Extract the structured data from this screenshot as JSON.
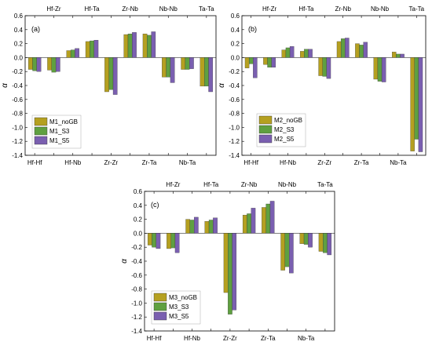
{
  "colors": {
    "s0": "#b5a020",
    "s1": "#5fa040",
    "s2": "#7a5fb0"
  },
  "chart_data": [
    {
      "type": "bar",
      "panel_label": "(a)",
      "ylabel": "α",
      "ylim": [
        -1.4,
        0.6
      ],
      "yticks": [
        "0.6",
        "0.4",
        "0.2",
        "0.0",
        "-0.2",
        "-0.4",
        "-0.6",
        "-0.8",
        "-1.0",
        "-1.2",
        "-1.4"
      ],
      "categories": [
        "Hf-Hf",
        "Hf-Zr",
        "Hf-Nb",
        "Hf-Ta",
        "Zr-Zr",
        "Zr-Nb",
        "Zr-Ta",
        "Nb-Nb",
        "Nb-Ta",
        "Ta-Ta"
      ],
      "legend_position": "bottom-left",
      "series": [
        {
          "name": "M1_noGB",
          "values": [
            -0.17,
            -0.18,
            0.1,
            0.23,
            -0.49,
            0.33,
            0.34,
            -0.28,
            -0.17,
            -0.41
          ]
        },
        {
          "name": "M1_S3",
          "values": [
            -0.19,
            -0.21,
            0.11,
            0.24,
            -0.46,
            0.34,
            0.32,
            -0.28,
            -0.17,
            -0.41
          ]
        },
        {
          "name": "M1_S5",
          "values": [
            -0.2,
            -0.2,
            0.13,
            0.25,
            -0.53,
            0.36,
            0.37,
            -0.36,
            -0.16,
            -0.49
          ]
        }
      ]
    },
    {
      "type": "bar",
      "panel_label": "(b)",
      "ylabel": "α",
      "ylim": [
        -1.4,
        0.6
      ],
      "yticks": [
        "0.6",
        "0.4",
        "0.2",
        "0.0",
        "-0.2",
        "-0.4",
        "-0.6",
        "-0.8",
        "-1.0",
        "-1.2",
        "-1.4"
      ],
      "categories": [
        "Hf-Hf",
        "Hf-Zr",
        "Hf-Nb",
        "Hf-Ta",
        "Zr-Zr",
        "Zr-Nb",
        "Zr-Ta",
        "Nb-Nb",
        "Nb-Ta",
        "Ta-Ta"
      ],
      "legend_position": "bottom-right",
      "series": [
        {
          "name": "M2_noGB",
          "values": [
            -0.15,
            -0.1,
            0.11,
            0.09,
            -0.26,
            0.23,
            0.2,
            -0.31,
            0.08,
            -1.34
          ]
        },
        {
          "name": "M2_S3",
          "values": [
            -0.09,
            -0.14,
            0.14,
            0.12,
            -0.27,
            0.27,
            0.18,
            -0.34,
            0.05,
            -1.17
          ]
        },
        {
          "name": "M2_S5",
          "values": [
            -0.29,
            -0.14,
            0.16,
            0.12,
            -0.3,
            0.28,
            0.22,
            -0.35,
            0.05,
            -1.35
          ]
        }
      ]
    },
    {
      "type": "bar",
      "panel_label": "(c)",
      "ylabel": "α",
      "ylim": [
        -1.4,
        0.6
      ],
      "yticks": [
        "0.6",
        "0.4",
        "0.2",
        "0.0",
        "-0.2",
        "-0.4",
        "-0.6",
        "-0.8",
        "-1.0",
        "-1.2",
        "-1.4"
      ],
      "categories": [
        "Hf-Hf",
        "Hf-Zr",
        "Hf-Nb",
        "Hf-Ta",
        "Zr-Zr",
        "Zr-Nb",
        "Zr-Ta",
        "Nb-Nb",
        "Nb-Ta",
        "Ta-Ta"
      ],
      "legend_position": "bottom-left",
      "series": [
        {
          "name": "M3_noGB",
          "values": [
            -0.17,
            -0.22,
            0.2,
            0.17,
            -0.85,
            0.26,
            0.37,
            -0.53,
            -0.15,
            -0.26
          ]
        },
        {
          "name": "M3_S3",
          "values": [
            -0.2,
            -0.21,
            0.19,
            0.19,
            -1.16,
            0.28,
            0.42,
            -0.48,
            -0.16,
            -0.28
          ]
        },
        {
          "name": "M3_S5",
          "values": [
            -0.22,
            -0.28,
            0.23,
            0.22,
            -1.1,
            0.36,
            0.46,
            -0.57,
            -0.2,
            -0.31
          ]
        }
      ]
    }
  ]
}
